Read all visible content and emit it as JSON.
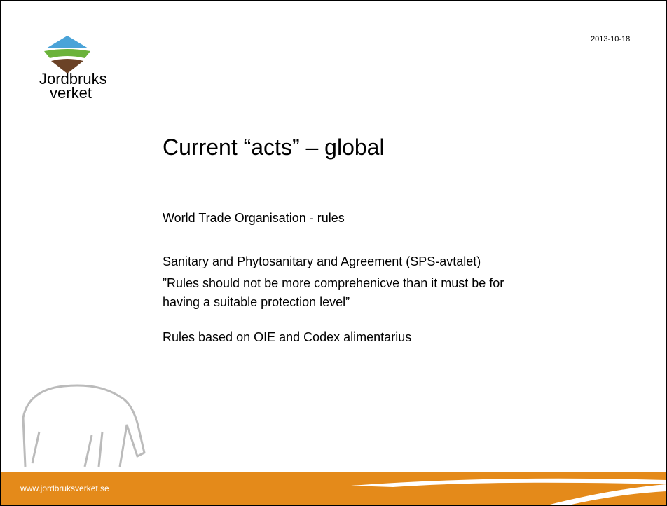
{
  "header": {
    "date": "2013-10-18",
    "logo_line1": "Jordbruks",
    "logo_line2": "verket"
  },
  "title": "Current “acts” – global",
  "body": [
    "World Trade Organisation - rules",
    "Sanitary and Phytosanitary and Agreement (SPS-avtalet)",
    "”Rules should not be more comprehenicve than it must be for having a  suitable protection level”",
    "Rules based on OIE and Codex alimentarius"
  ],
  "footer": {
    "url": "www.jordbruksverket.se"
  }
}
